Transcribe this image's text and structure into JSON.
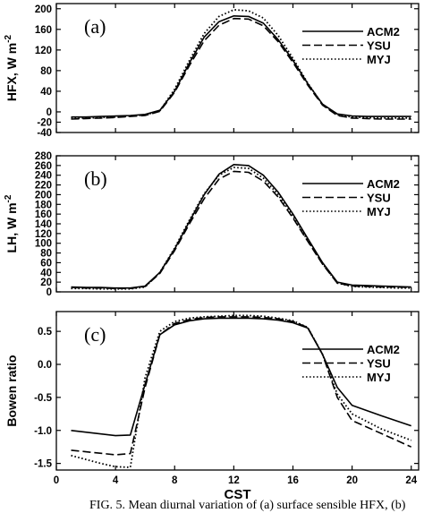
{
  "chart_data": [
    {
      "type": "line",
      "panel_label": "(a)",
      "ylabel_main": "HFX, W m",
      "ylabel_sup": "-2",
      "xlabel": "",
      "xlim": [
        0,
        24.5
      ],
      "ylim": [
        -40,
        210
      ],
      "yticks": [
        -40,
        -20,
        0,
        40,
        80,
        120,
        160,
        200
      ],
      "xticks": [
        0,
        4,
        8,
        12,
        16,
        20,
        24
      ],
      "show_xtick_labels": false,
      "legend_position": "right",
      "series": [
        {
          "name": "ACM2",
          "style": "solid",
          "x": [
            1,
            2,
            3,
            4,
            5,
            6,
            7,
            8,
            9,
            10,
            11,
            12,
            13,
            14,
            15,
            16,
            17,
            18,
            19,
            20,
            21,
            22,
            23,
            24
          ],
          "y": [
            -10,
            -10,
            -9,
            -8,
            -7,
            -5,
            3,
            40,
            95,
            145,
            175,
            186,
            185,
            172,
            140,
            100,
            55,
            15,
            -4,
            -8,
            -9,
            -9,
            -9,
            -9
          ]
        },
        {
          "name": "YSU",
          "style": "dashed",
          "x": [
            1,
            2,
            3,
            4,
            5,
            6,
            7,
            8,
            9,
            10,
            11,
            12,
            13,
            14,
            15,
            16,
            17,
            18,
            19,
            20,
            21,
            22,
            23,
            24
          ],
          "y": [
            -14,
            -13,
            -12,
            -11,
            -9,
            -7,
            1,
            38,
            90,
            138,
            168,
            181,
            180,
            167,
            136,
            96,
            52,
            13,
            -7,
            -12,
            -13,
            -14,
            -14,
            -14
          ]
        },
        {
          "name": "MYJ",
          "style": "dotted",
          "x": [
            1,
            2,
            3,
            4,
            5,
            6,
            7,
            8,
            9,
            10,
            11,
            12,
            13,
            14,
            15,
            16,
            17,
            18,
            19,
            20,
            21,
            22,
            23,
            24
          ],
          "y": [
            -12,
            -12,
            -11,
            -10,
            -8,
            -6,
            2,
            44,
            100,
            152,
            185,
            198,
            196,
            182,
            148,
            104,
            56,
            14,
            -6,
            -10,
            -11,
            -12,
            -12,
            -12
          ]
        }
      ]
    },
    {
      "type": "line",
      "panel_label": "(b)",
      "ylabel_main": "LH, W m",
      "ylabel_sup": "-2",
      "xlabel": "",
      "xlim": [
        0,
        24.5
      ],
      "ylim": [
        0,
        280
      ],
      "yticks": [
        0,
        20,
        40,
        60,
        80,
        100,
        120,
        140,
        160,
        180,
        200,
        220,
        240,
        260,
        280
      ],
      "xticks": [
        0,
        4,
        8,
        12,
        16,
        20,
        24
      ],
      "show_xtick_labels": false,
      "legend_position": "right",
      "series": [
        {
          "name": "ACM2",
          "style": "solid",
          "x": [
            1,
            2,
            3,
            4,
            5,
            6,
            7,
            8,
            9,
            10,
            11,
            12,
            13,
            14,
            15,
            16,
            17,
            18,
            19,
            20,
            21,
            22,
            23,
            24
          ],
          "y": [
            10,
            9,
            9,
            8,
            8,
            12,
            40,
            88,
            145,
            200,
            242,
            262,
            260,
            240,
            205,
            160,
            110,
            60,
            20,
            14,
            13,
            12,
            11,
            10
          ]
        },
        {
          "name": "YSU",
          "style": "dashed",
          "x": [
            1,
            2,
            3,
            4,
            5,
            6,
            7,
            8,
            9,
            10,
            11,
            12,
            13,
            14,
            15,
            16,
            17,
            18,
            19,
            20,
            21,
            22,
            23,
            24
          ],
          "y": [
            9,
            8,
            8,
            7,
            7,
            11,
            38,
            85,
            140,
            192,
            232,
            248,
            246,
            228,
            195,
            152,
            104,
            57,
            18,
            12,
            11,
            10,
            10,
            9
          ]
        },
        {
          "name": "MYJ",
          "style": "dotted",
          "x": [
            1,
            2,
            3,
            4,
            5,
            6,
            7,
            8,
            9,
            10,
            11,
            12,
            13,
            14,
            15,
            16,
            17,
            18,
            19,
            20,
            21,
            22,
            23,
            24
          ],
          "y": [
            7,
            7,
            6,
            6,
            6,
            10,
            40,
            90,
            148,
            202,
            240,
            256,
            254,
            234,
            200,
            156,
            106,
            58,
            18,
            11,
            10,
            9,
            8,
            8
          ]
        }
      ]
    },
    {
      "type": "line",
      "panel_label": "(c)",
      "ylabel_main": "Bowen ratio",
      "ylabel_sup": "",
      "xlabel": "CST",
      "xlim": [
        0,
        24.5
      ],
      "ylim": [
        -1.6,
        0.8
      ],
      "yticks": [
        -1.5,
        -1.0,
        -0.5,
        0.0,
        0.5
      ],
      "ytick_labels": [
        "-1.5",
        "-1.0",
        "-0.5",
        "0.0",
        "0.5"
      ],
      "xticks": [
        0,
        4,
        8,
        12,
        16,
        20,
        24
      ],
      "show_xtick_labels": true,
      "legend_position": "right",
      "series": [
        {
          "name": "ACM2",
          "style": "solid",
          "x": [
            1,
            4,
            5,
            6,
            7,
            8,
            9,
            10,
            11,
            12,
            13,
            14,
            15,
            16,
            17,
            18,
            19,
            20,
            22,
            24
          ],
          "y": [
            -1.0,
            -1.08,
            -1.07,
            -0.3,
            0.45,
            0.6,
            0.66,
            0.69,
            0.7,
            0.7,
            0.7,
            0.69,
            0.67,
            0.63,
            0.55,
            0.15,
            -0.35,
            -0.62,
            -0.78,
            -0.93
          ]
        },
        {
          "name": "YSU",
          "style": "dashed",
          "x": [
            1,
            4,
            5,
            6,
            7,
            8,
            9,
            10,
            11,
            12,
            13,
            14,
            15,
            16,
            17,
            18,
            19,
            20,
            22,
            24
          ],
          "y": [
            -1.3,
            -1.37,
            -1.35,
            -0.35,
            0.45,
            0.62,
            0.68,
            0.71,
            0.72,
            0.72,
            0.72,
            0.71,
            0.69,
            0.65,
            0.56,
            0.15,
            -0.5,
            -0.85,
            -1.05,
            -1.25
          ]
        },
        {
          "name": "MYJ",
          "style": "dotted",
          "x": [
            1,
            3,
            4,
            5,
            6,
            7,
            8,
            9,
            10,
            11,
            12,
            13,
            14,
            15,
            16,
            17,
            18,
            19,
            20,
            22,
            24
          ],
          "y": [
            -1.38,
            -1.5,
            -1.55,
            -1.56,
            -0.2,
            0.5,
            0.65,
            0.7,
            0.72,
            0.73,
            0.74,
            0.74,
            0.73,
            0.7,
            0.66,
            0.56,
            0.15,
            -0.45,
            -0.75,
            -0.98,
            -1.15
          ]
        }
      ]
    }
  ],
  "caption": "FIG. 5. Mean diurnal variation of (a) surface sensible HFX, (b)"
}
